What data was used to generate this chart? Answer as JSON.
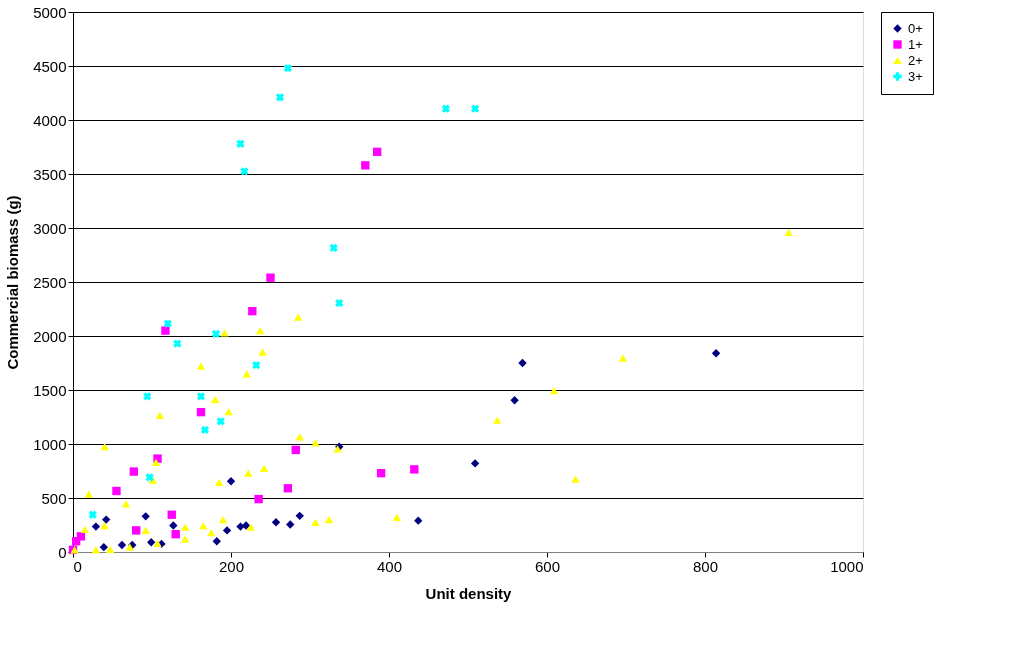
{
  "chart_data": {
    "type": "scatter",
    "xlabel": "Unit density",
    "ylabel": "Commercial biomass (g)",
    "xlim": [
      0,
      1000
    ],
    "xticks": [
      0,
      200,
      400,
      600,
      800,
      1000
    ],
    "ylim": [
      0,
      5000
    ],
    "yticks": [
      0,
      500,
      1000,
      1500,
      2000,
      2500,
      3000,
      3500,
      4000,
      4500,
      5000
    ],
    "grid": "y",
    "legend": "right",
    "series": [
      {
        "name": "0+",
        "color": "#000080",
        "marker": "diamond",
        "x": [
          42,
          29,
          92,
          127,
          195,
          182,
          200,
          62,
          39,
          75,
          99,
          112,
          212,
          219,
          257,
          275,
          287,
          337,
          437,
          509,
          559,
          569,
          814
        ],
        "values": [
          300,
          235,
          330,
          245,
          200,
          100,
          655,
          65,
          45,
          65,
          90,
          75,
          235,
          245,
          275,
          255,
          335,
          975,
          290,
          820,
          1405,
          1750,
          1840
        ]
      },
      {
        "name": "1+",
        "color": "#ff00ff",
        "marker": "square",
        "x": [
          162,
          107,
          77,
          55,
          125,
          80,
          130,
          10,
          4,
          0,
          282,
          272,
          235,
          390,
          432,
          385,
          370,
          250,
          227,
          117
        ],
        "values": [
          1295,
          865,
          745,
          565,
          345,
          200,
          165,
          145,
          100,
          20,
          945,
          590,
          490,
          730,
          765,
          3705,
          3580,
          2540,
          2230,
          2050
        ]
      },
      {
        "name": "2+",
        "color": "#ffff00",
        "marker": "triangle",
        "x": [
          180,
          197,
          110,
          40,
          105,
          101,
          185,
          20,
          67,
          40,
          15,
          92,
          142,
          165,
          190,
          175,
          142,
          2,
          29,
          47,
          72,
          107,
          220,
          287,
          307,
          335,
          222,
          242,
          225,
          307,
          324,
          410,
          285,
          192,
          237,
          240,
          162,
          906,
          696,
          609,
          537,
          636
        ],
        "values": [
          1410,
          1300,
          1265,
          975,
          830,
          665,
          645,
          535,
          445,
          245,
          210,
          200,
          230,
          245,
          300,
          180,
          120,
          20,
          20,
          25,
          45,
          80,
          1650,
          1065,
          1010,
          955,
          730,
          775,
          230,
          275,
          300,
          320,
          2175,
          2030,
          2050,
          1850,
          1720,
          2960,
          1795,
          1495,
          1220,
          675
        ]
      },
      {
        "name": "3+",
        "color": "#00ffff",
        "marker": "cross",
        "x": [
          94,
          162,
          187,
          167,
          97,
          25,
          272,
          262,
          212,
          217,
          330,
          337,
          120,
          132,
          181,
          232,
          472,
          509
        ],
        "values": [
          1440,
          1440,
          1210,
          1130,
          690,
          345,
          4480,
          4210,
          3780,
          3525,
          2815,
          2305,
          2115,
          1930,
          2020,
          1730,
          4105,
          4105
        ]
      }
    ]
  }
}
